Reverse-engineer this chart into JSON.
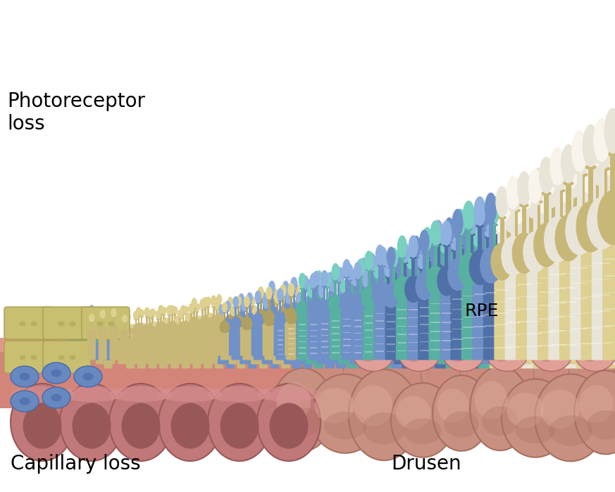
{
  "background_color": "#ffffff",
  "labels": {
    "photoreceptor_loss": "Photoreceptor\nloss",
    "capillary_loss": "Capillary loss",
    "drusen": "Drusen",
    "rpe": "RPE"
  },
  "label_fontsize": 20,
  "rpe_fontsize": 18,
  "figsize": [
    8.73,
    6.99
  ],
  "dpi": 100,
  "colors": {
    "tan": "#c8b878",
    "tan_light": "#ddd090",
    "tan_dark": "#b0a060",
    "blue": "#7090c8",
    "blue_light": "#90b0e0",
    "blue_dark": "#5070a8",
    "teal": "#58b0a0",
    "teal_light": "#78d0c0",
    "teal_dark": "#408880",
    "white_cream": "#e8e4d8",
    "white_cream_light": "#f8f4ec",
    "rpe_pink": "#d08888",
    "rpe_light": "#e0a098",
    "rpe_dark": "#b06868",
    "drusen_main": "#c89080",
    "drusen_light": "#dba898",
    "drusen_dark": "#a87060",
    "cap_main": "#c07878",
    "cap_light": "#d89090",
    "cap_dark": "#985858",
    "base_layer": "#d4857a",
    "base_layer2": "#e09888",
    "yellow_cell": "#c8c070",
    "yellow_cell_dark": "#a8a050",
    "blue_cell": "#6888c0",
    "blue_cell_dark": "#4868a8",
    "teal_cell": "#60a898",
    "background_mid": "#f5e8e0"
  }
}
